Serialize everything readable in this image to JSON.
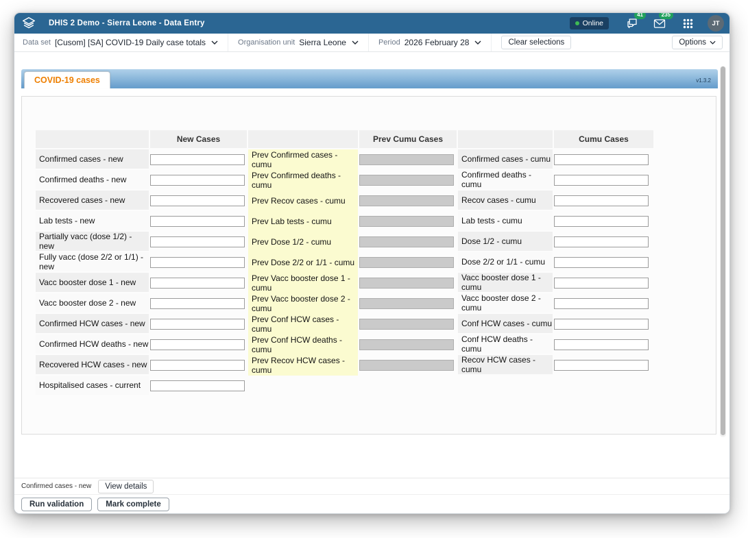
{
  "app_bar": {
    "title": "DHIS 2 Demo - Sierra Leone - Data Entry",
    "online_label": "Online",
    "messages_count": "41",
    "mail_count": "235",
    "avatar_initials": "JT"
  },
  "context_bar": {
    "data_set_label": "Data set",
    "data_set_value": "[Cusom] [SA] COVID-19 Daily case totals",
    "org_unit_label": "Organisation unit",
    "org_unit_value": "Sierra Leone",
    "period_label": "Period",
    "period_value": "2026 February 28",
    "clear_button": "Clear selections",
    "options_button": "Options"
  },
  "form": {
    "tab_label": "COVID-19 cases",
    "version": "v1.3.2",
    "column_headers": [
      "New Cases",
      "Prev Cumu Cases",
      "Cumu Cases"
    ],
    "rows": [
      {
        "label": "Confirmed cases - new",
        "new_value": "",
        "prev_label": "Prev Confirmed cases - cumu",
        "cumu_label": "Confirmed cases - cumu",
        "cumu_value": ""
      },
      {
        "label": "Confirmed deaths - new",
        "new_value": "",
        "prev_label": "Prev Confirmed deaths - cumu",
        "cumu_label": "Confirmed deaths - cumu",
        "cumu_value": ""
      },
      {
        "label": "Recovered cases - new",
        "new_value": "",
        "prev_label": "Prev Recov cases - cumu",
        "cumu_label": "Recov cases - cumu",
        "cumu_value": ""
      },
      {
        "label": "Lab tests - new",
        "new_value": "",
        "prev_label": "Prev Lab tests - cumu",
        "cumu_label": "Lab tests - cumu",
        "cumu_value": ""
      },
      {
        "label": "Partially vacc (dose 1/2) - new",
        "new_value": "",
        "prev_label": "Prev Dose 1/2 - cumu",
        "cumu_label": "Dose 1/2 - cumu",
        "cumu_value": ""
      },
      {
        "label": "Fully vacc (dose 2/2 or 1/1) - new",
        "new_value": "",
        "prev_label": "Prev Dose 2/2 or 1/1 - cumu",
        "cumu_label": "Dose 2/2 or 1/1 - cumu",
        "cumu_value": ""
      },
      {
        "label": "Vacc booster dose 1 - new",
        "new_value": "",
        "prev_label": "Prev Vacc booster dose 1 - cumu",
        "cumu_label": "Vacc booster dose 1 - cumu",
        "cumu_value": ""
      },
      {
        "label": "Vacc booster dose 2 - new",
        "new_value": "",
        "prev_label": "Prev Vacc booster dose 2 - cumu",
        "cumu_label": "Vacc booster dose 2 - cumu",
        "cumu_value": ""
      },
      {
        "label": "Confirmed HCW cases - new",
        "new_value": "",
        "prev_label": "Prev Conf HCW cases - cumu",
        "cumu_label": "Conf HCW cases - cumu",
        "cumu_value": ""
      },
      {
        "label": "Confirmed HCW deaths - new",
        "new_value": "",
        "prev_label": "Prev Conf HCW deaths - cumu",
        "cumu_label": "Conf HCW deaths - cumu",
        "cumu_value": ""
      },
      {
        "label": "Recovered HCW cases - new",
        "new_value": "",
        "prev_label": "Prev Recov HCW cases - cumu",
        "cumu_label": "Recov HCW cases - cumu",
        "cumu_value": ""
      },
      {
        "label": "Hospitalised cases - current",
        "new_value": "",
        "prev_label": null,
        "cumu_label": null,
        "cumu_value": null
      }
    ]
  },
  "status_bar": {
    "selected_cell": "Confirmed cases - new",
    "view_details_button": "View details",
    "run_validation_button": "Run validation",
    "mark_complete_button": "Mark complete"
  },
  "colors": {
    "appbar_blue": "#2b6693",
    "badge_green": "#21a05c",
    "online_dot_green": "#3fba54",
    "tab_text_orange": "#ee7f00",
    "tabstrip_blue_top": "#b0d1ea",
    "tabstrip_blue_bottom": "#649ccb",
    "prev_column_yellow": "#fbfbd0",
    "disabled_input_gray": "#cacaca"
  }
}
